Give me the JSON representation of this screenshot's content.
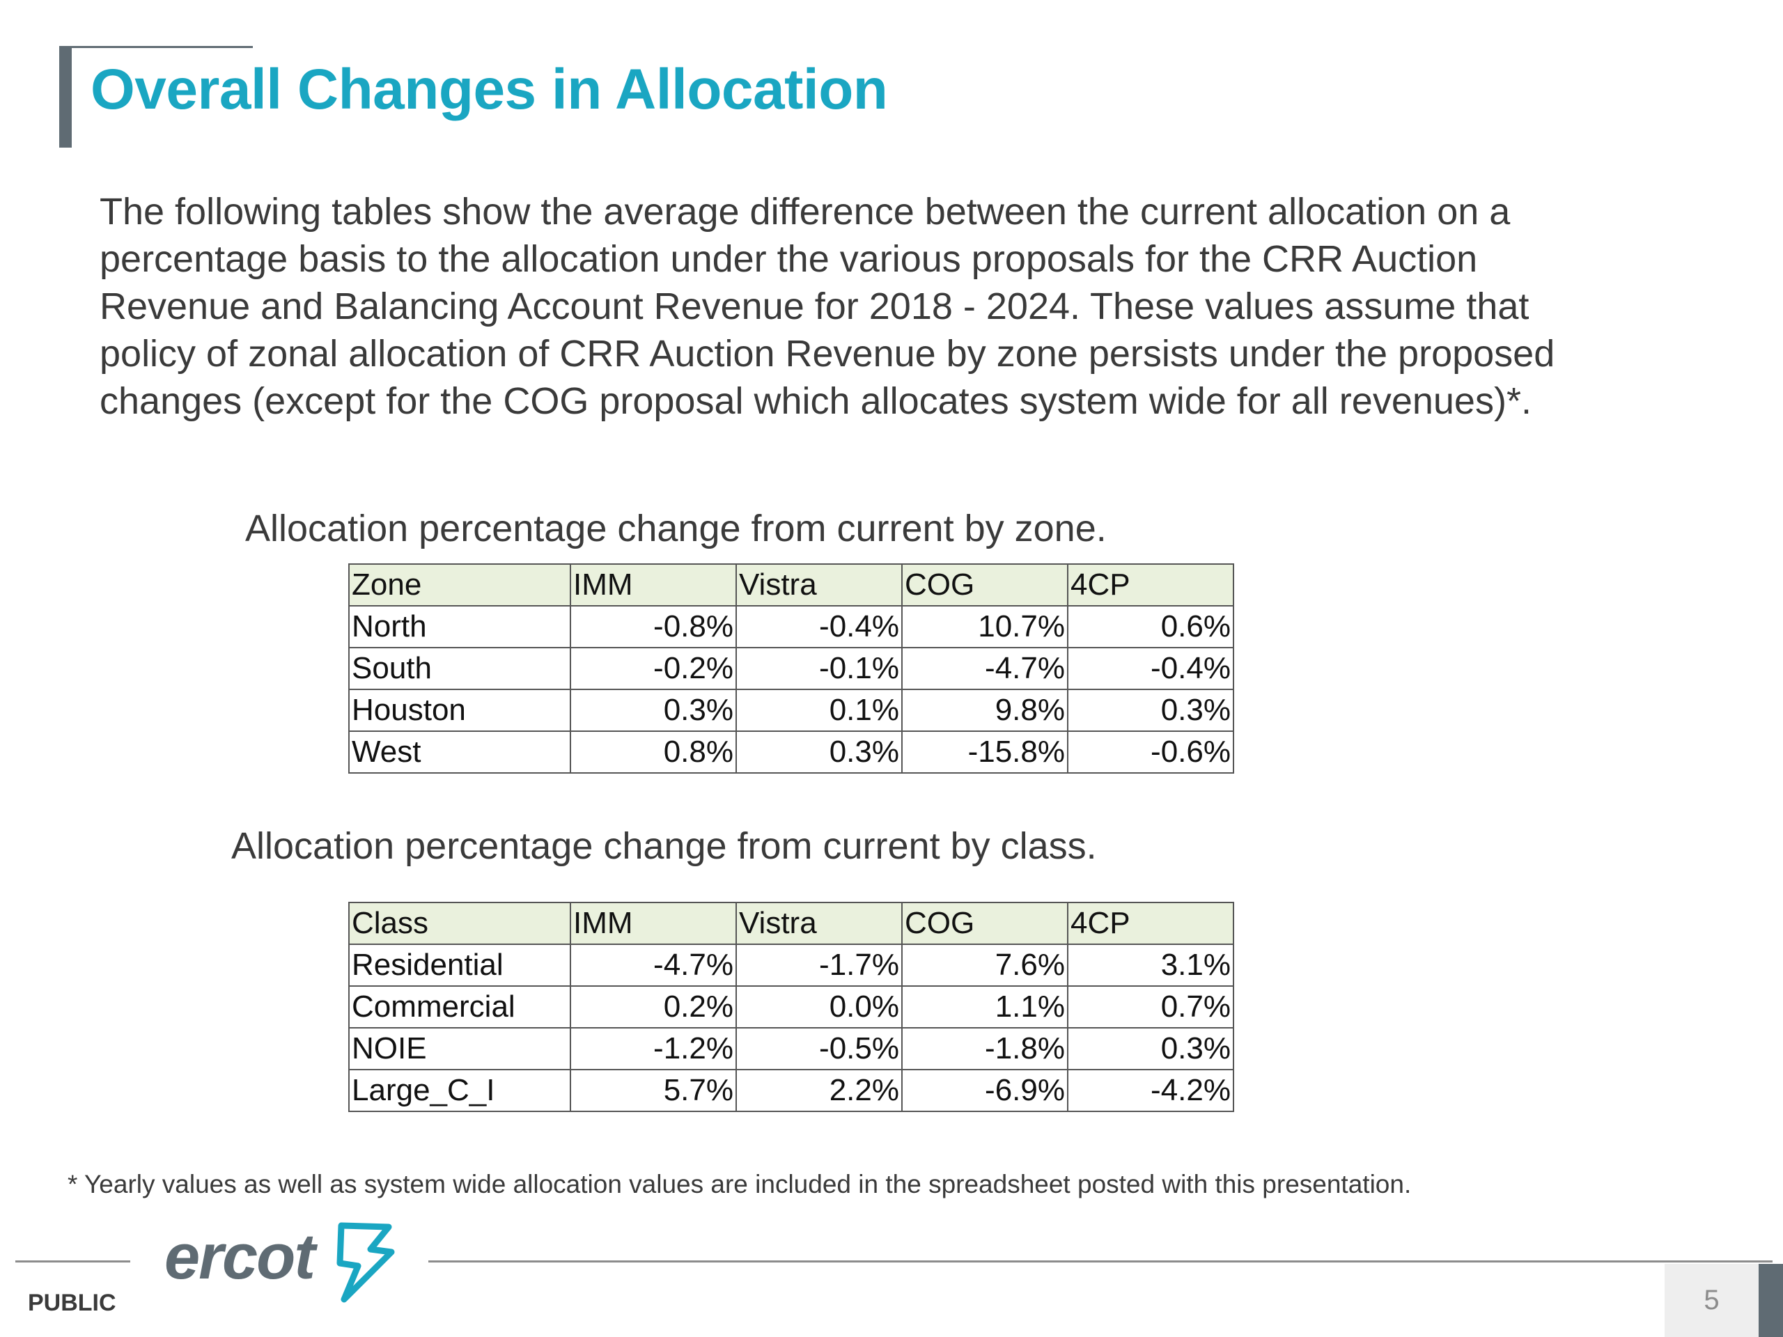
{
  "title": "Overall Changes in Allocation",
  "intro": "The following tables show the average difference between the current allocation on a percentage basis to the allocation under the various proposals for the CRR Auction Revenue and Balancing Account Revenue for 2018 - 2024. These values assume that policy of zonal allocation of CRR Auction Revenue by zone persists under the proposed changes (except for the COG proposal which allocates system wide for all revenues)*.",
  "zone_table": {
    "caption": "Allocation percentage change from current by zone.",
    "headers": [
      "Zone",
      "IMM",
      "Vistra",
      "COG",
      "4CP"
    ],
    "rows": [
      [
        "North",
        "-0.8%",
        "-0.4%",
        "10.7%",
        "0.6%"
      ],
      [
        "South",
        "-0.2%",
        "-0.1%",
        "-4.7%",
        "-0.4%"
      ],
      [
        "Houston",
        "0.3%",
        "0.1%",
        "9.8%",
        "0.3%"
      ],
      [
        "West",
        "0.8%",
        "0.3%",
        "-15.8%",
        "-0.6%"
      ]
    ]
  },
  "class_table": {
    "caption": "Allocation percentage change from current by class.",
    "headers": [
      "Class",
      "IMM",
      "Vistra",
      "COG",
      "4CP"
    ],
    "rows": [
      [
        "Residential",
        "-4.7%",
        "-1.7%",
        "7.6%",
        "3.1%"
      ],
      [
        "Commercial",
        "0.2%",
        "0.0%",
        "1.1%",
        "0.7%"
      ],
      [
        "NOIE",
        "-1.2%",
        "-0.5%",
        "-1.8%",
        "0.3%"
      ],
      [
        "Large_C_I",
        "5.7%",
        "2.2%",
        "-6.9%",
        "-4.2%"
      ]
    ]
  },
  "footnote": "* Yearly values as well as system wide allocation values are included in the spreadsheet posted with this presentation.",
  "footer": {
    "logo_text": "ercot",
    "classification": "PUBLIC",
    "page_number": "5"
  },
  "colors": {
    "title": "#1aa6c2",
    "header_fill": "#eaf1dd",
    "accent_gray": "#5f6b73",
    "logo_blue": "#1aa6c2"
  }
}
